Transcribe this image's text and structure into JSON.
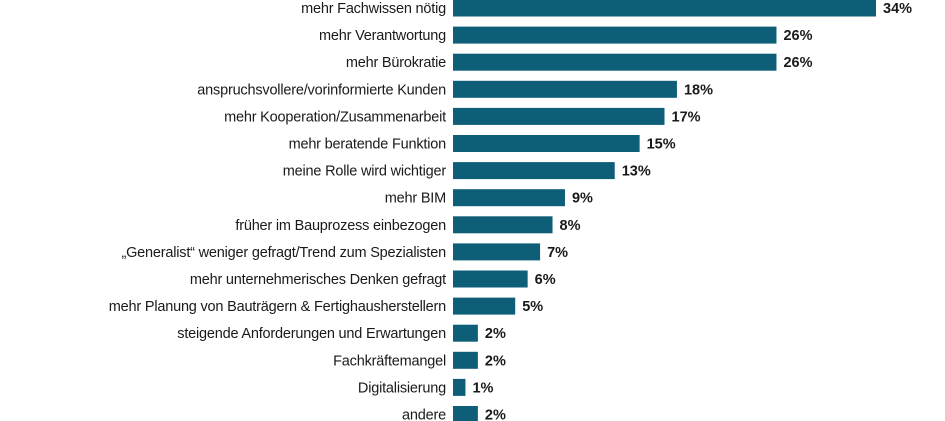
{
  "chart_data": {
    "type": "bar",
    "orientation": "horizontal",
    "categories": [
      "mehr Fachwissen nötig",
      "mehr Verantwortung",
      "mehr Bürokratie",
      "anspruchsvollere/vorinformierte Kunden",
      "mehr Kooperation/Zusammenarbeit",
      "mehr beratende Funktion",
      "meine Rolle wird wichtiger",
      "mehr BIM",
      "früher im Bauprozess einbezogen",
      "„Generalist“ weniger gefragt/Trend zum Spezialisten",
      "mehr unternehmerisches Denken gefragt",
      "mehr Planung von Bauträgern & Fertighausherstellern",
      "steigende Anforderungen und Erwartungen",
      "Fachkräftemangel",
      "Digitalisierung",
      "andere"
    ],
    "values": [
      34,
      26,
      26,
      18,
      17,
      15,
      13,
      9,
      8,
      7,
      6,
      5,
      2,
      2,
      1,
      2
    ],
    "value_labels": [
      "34%",
      "26%",
      "26%",
      "18%",
      "17%",
      "15%",
      "13%",
      "9%",
      "8%",
      "7%",
      "6%",
      "5%",
      "2%",
      "2%",
      "1%",
      "2%"
    ],
    "unit": "%",
    "bar_color": "#0f5e78",
    "xlim": [
      0,
      34
    ],
    "grid": false,
    "legend": "none"
  }
}
